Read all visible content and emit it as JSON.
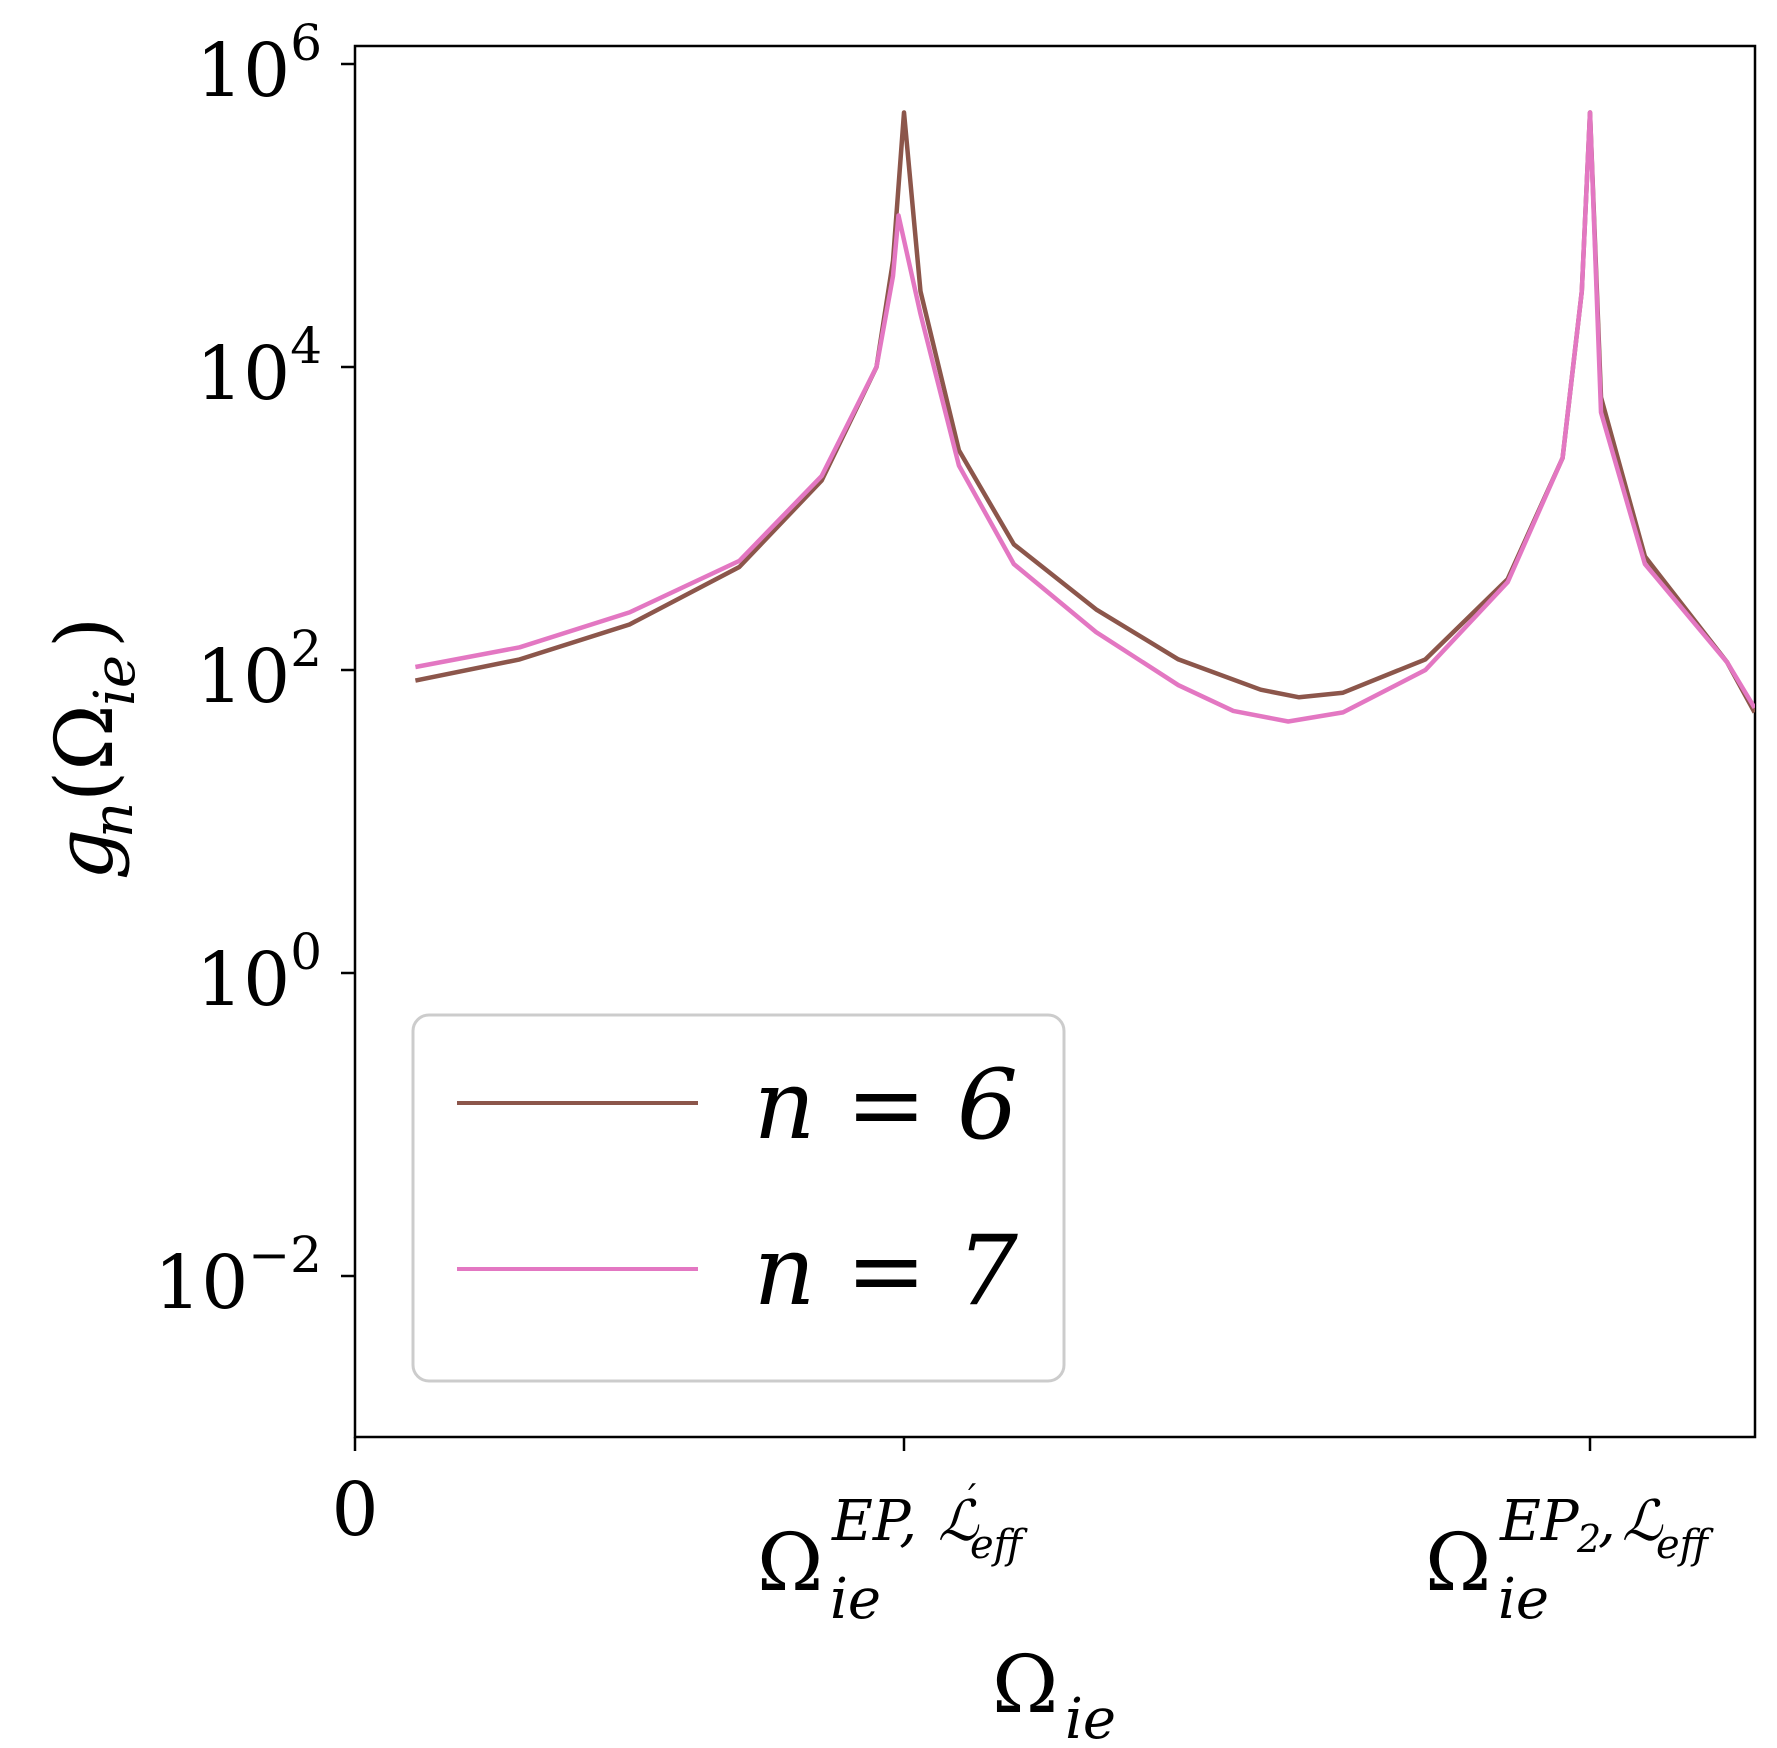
{
  "chart_data": {
    "type": "line",
    "xlabel": "Ω_ie",
    "ylabel": "g_n(Ω_ie)",
    "yscale": "log",
    "ylim_exponent": [
      -3.2,
      6.2
    ],
    "x_ticks": [
      {
        "value": 0,
        "label": "0"
      },
      {
        "value": 1,
        "label": "Ω_ie^{EP,ℒ′_eff}"
      },
      {
        "value": 2.25,
        "label": "Ω_ie^{EP_2,ℒ_eff}"
      }
    ],
    "y_ticks": [
      {
        "base": "10",
        "exponent": "6"
      },
      {
        "base": "10",
        "exponent": "4"
      },
      {
        "base": "10",
        "exponent": "2"
      },
      {
        "base": "10",
        "exponent": "0"
      },
      {
        "base": "10",
        "exponent": "−2"
      }
    ],
    "legend": {
      "position": "lower-left"
    },
    "series": [
      {
        "name": "n = 6",
        "color": "#8c564b",
        "x": [
          0.11,
          0.3,
          0.5,
          0.7,
          0.85,
          0.95,
          0.98,
          1.0,
          1.03,
          1.1,
          1.2,
          1.35,
          1.5,
          1.65,
          1.72,
          1.8,
          1.95,
          2.1,
          2.2,
          2.235,
          2.25,
          2.27,
          2.35,
          2.5,
          2.55
        ],
        "log10_y": [
          1.93,
          2.07,
          2.3,
          2.68,
          3.25,
          4.0,
          4.7,
          5.68,
          4.5,
          3.45,
          2.83,
          2.4,
          2.07,
          1.87,
          1.82,
          1.85,
          2.07,
          2.6,
          3.4,
          4.5,
          5.68,
          3.8,
          2.75,
          2.05,
          1.72
        ]
      },
      {
        "name": "n = 7",
        "color": "#e377c2",
        "x": [
          0.11,
          0.3,
          0.5,
          0.7,
          0.85,
          0.95,
          0.98,
          0.99,
          1.03,
          1.1,
          1.2,
          1.35,
          1.5,
          1.6,
          1.7,
          1.8,
          1.95,
          2.1,
          2.2,
          2.235,
          2.25,
          2.27,
          2.35,
          2.5,
          2.55
        ],
        "log10_y": [
          2.02,
          2.15,
          2.38,
          2.72,
          3.28,
          4.0,
          4.6,
          5.0,
          4.35,
          3.35,
          2.7,
          2.25,
          1.9,
          1.73,
          1.66,
          1.72,
          2.0,
          2.58,
          3.4,
          4.5,
          5.68,
          3.7,
          2.7,
          2.05,
          1.75
        ]
      }
    ]
  }
}
